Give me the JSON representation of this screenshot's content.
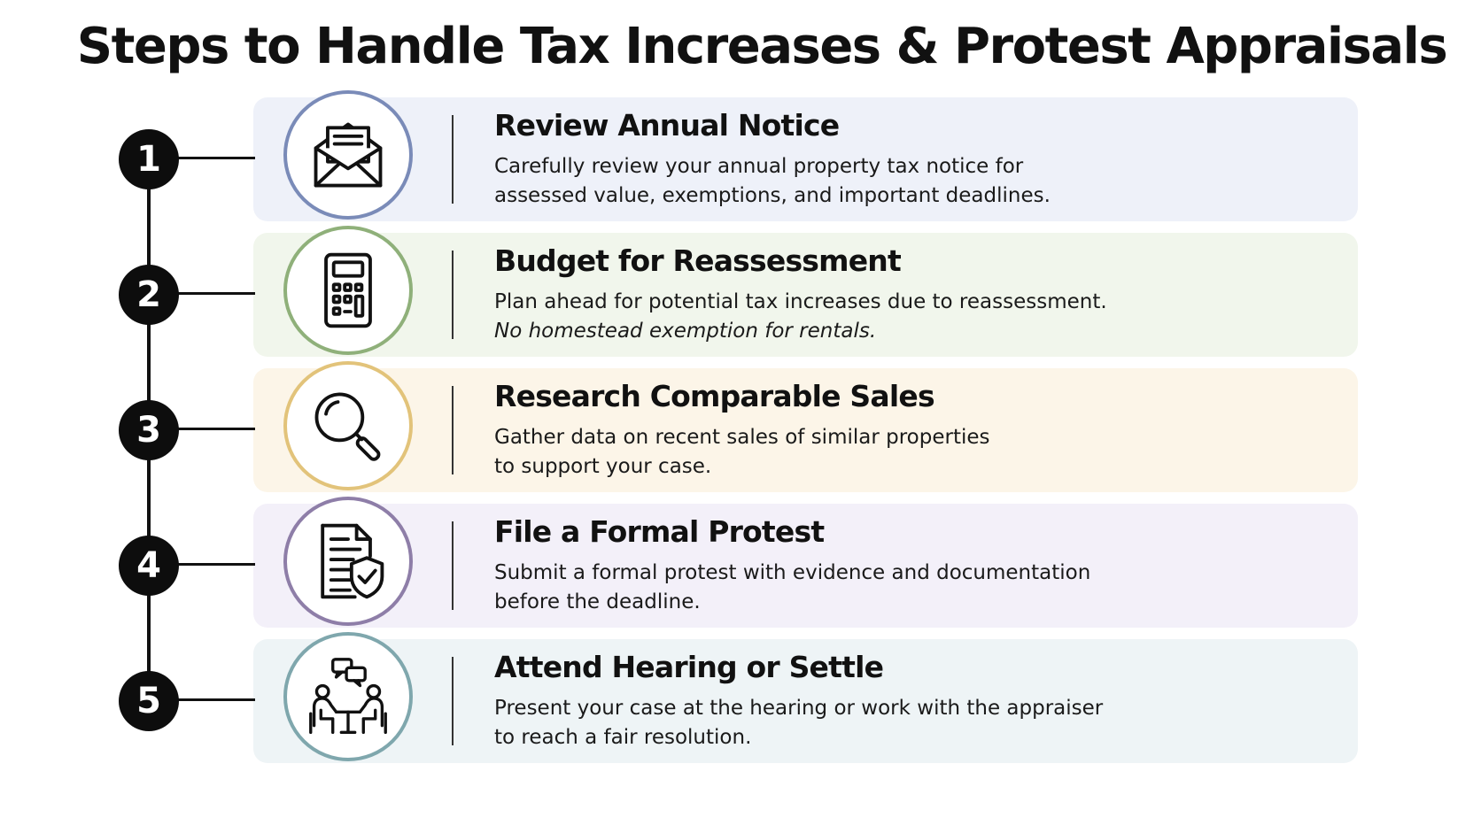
{
  "title": "Steps to Handle Tax Increases & Protest Appraisals",
  "colors": {
    "step1_bg": "#eef1f9",
    "step1_ring": "#7a8bb8",
    "step2_bg": "#f1f6ec",
    "step2_ring": "#8fb07a",
    "step3_bg": "#fcf5e8",
    "step3_ring": "#e2c37a",
    "step4_bg": "#f3f0f9",
    "step4_ring": "#8e7ea8",
    "step5_bg": "#eef4f6",
    "step5_ring": "#7fa7ad"
  },
  "steps": [
    {
      "number": "1",
      "icon": "envelope-document-icon",
      "title": "Review Annual Notice",
      "line1": "Carefully review your annual property tax notice for",
      "line2": "assessed value, exemptions, and important deadlines."
    },
    {
      "number": "2",
      "icon": "calculator-icon",
      "title": "Budget for Reassessment",
      "line1": "Plan ahead for potential tax increases due to reassessment.",
      "line2": "No homestead exemption for rentals."
    },
    {
      "number": "3",
      "icon": "magnifying-glass-icon",
      "title": "Research Comparable Sales",
      "line1": "Gather data on recent sales of similar properties",
      "line2": "to support your case."
    },
    {
      "number": "4",
      "icon": "document-shield-icon",
      "title": "File a Formal Protest",
      "line1": "Submit a formal protest with evidence and documentation",
      "line2": "before the deadline."
    },
    {
      "number": "5",
      "icon": "meeting-discussion-icon",
      "title": "Attend Hearing or Settle",
      "line1": "Present your case at the hearing or work with the appraiser",
      "line2": "to reach a fair resolution."
    }
  ]
}
